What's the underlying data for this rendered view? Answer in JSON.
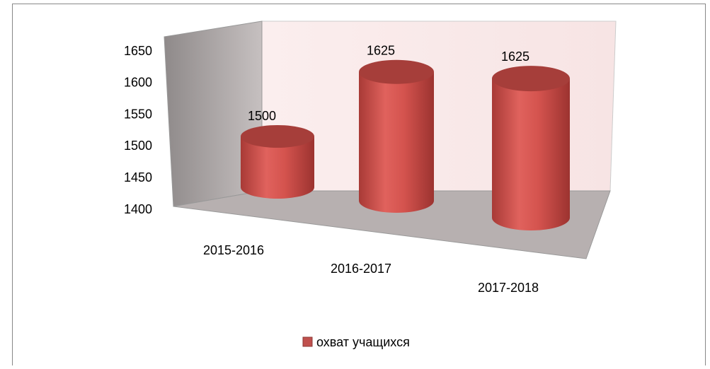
{
  "chart_data": {
    "type": "bar3d",
    "categories": [
      "2015-2016",
      "2016-2017",
      "2017-2018"
    ],
    "series": [
      {
        "name": "охват учащихся",
        "color": "#c0504d",
        "values": [
          1500,
          1625,
          1625
        ]
      }
    ],
    "ylim": [
      1400,
      1650
    ],
    "yticks": [
      1400,
      1450,
      1500,
      1550,
      1600,
      1650
    ],
    "grid": false,
    "legend": "bottom"
  }
}
